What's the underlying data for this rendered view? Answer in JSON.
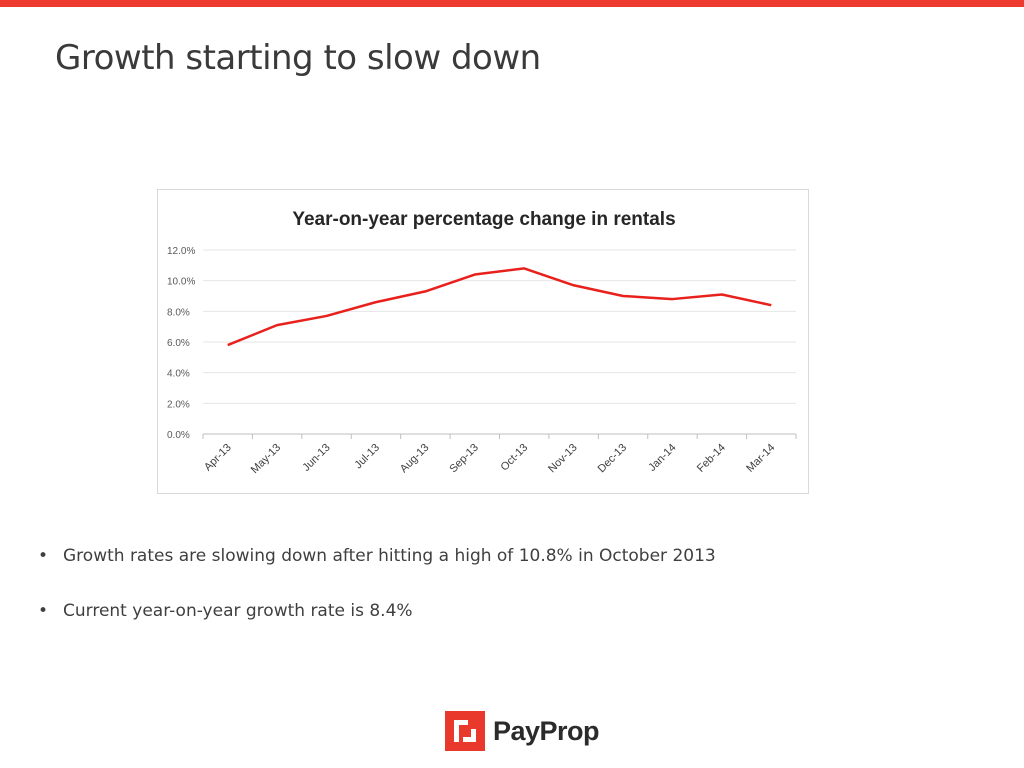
{
  "slide": {
    "title": "Growth starting to slow down",
    "bullets": [
      "Growth rates are slowing down after hitting a high of 10.8% in October 2013",
      "Current year-on-year growth rate is 8.4%"
    ],
    "bullet_symbol": "•",
    "accent_color": "#ee3a2f"
  },
  "logo": {
    "text": "PayProp",
    "icon": "payprop-logo-icon",
    "color": "#e8392c"
  },
  "chart_data": {
    "type": "line",
    "title": "Year-on-year percentage change in rentals",
    "categories": [
      "Apr-13",
      "May-13",
      "Jun-13",
      "Jul-13",
      "Aug-13",
      "Sep-13",
      "Oct-13",
      "Nov-13",
      "Dec-13",
      "Jan-14",
      "Feb-14",
      "Mar-14"
    ],
    "series": [
      {
        "values": [
          5.8,
          7.1,
          7.7,
          8.6,
          9.3,
          10.4,
          10.8,
          9.7,
          9.0,
          8.8,
          9.1,
          8.4
        ],
        "color": "#e8211d"
      }
    ],
    "ylim": [
      0,
      12
    ],
    "yticks": [
      "0.0%",
      "2.0%",
      "4.0%",
      "6.0%",
      "8.0%",
      "10.0%",
      "12.0%"
    ],
    "ytick_values": [
      0,
      2,
      4,
      6,
      8,
      10,
      12
    ],
    "grid": true,
    "legend": "none"
  }
}
